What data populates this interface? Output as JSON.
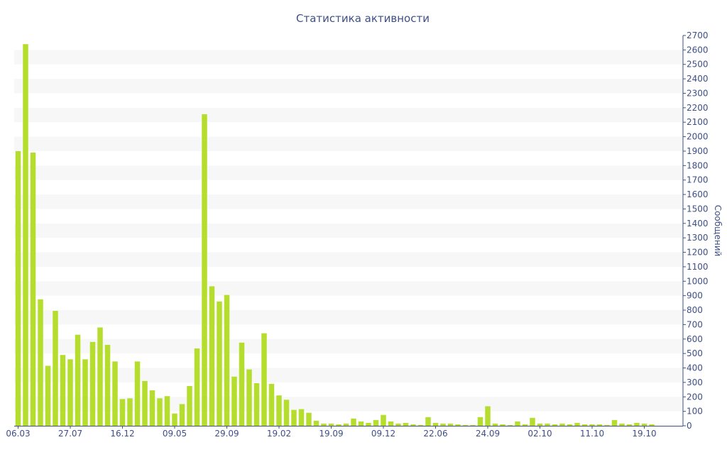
{
  "chart_data": {
    "type": "bar",
    "title": "Статистика активности",
    "xlabel": "",
    "ylabel": "Сообщений",
    "ylim": [
      0,
      2700
    ],
    "y_ticks": [
      0,
      100,
      200,
      300,
      400,
      500,
      600,
      700,
      800,
      900,
      1000,
      1100,
      1200,
      1300,
      1400,
      1500,
      1600,
      1700,
      1800,
      1900,
      2000,
      2100,
      2200,
      2300,
      2400,
      2500,
      2600,
      2700
    ],
    "y_axis_position": "right",
    "grid": "horizontal-bands",
    "x_tick_labels": [
      {
        "index": 0,
        "label": "06.03"
      },
      {
        "index": 7,
        "label": "27.07"
      },
      {
        "index": 14,
        "label": "16.12"
      },
      {
        "index": 21,
        "label": "09.05"
      },
      {
        "index": 28,
        "label": "29.09"
      },
      {
        "index": 35,
        "label": "19.02"
      },
      {
        "index": 42,
        "label": "19.09"
      },
      {
        "index": 49,
        "label": "09.12"
      },
      {
        "index": 56,
        "label": "22.06"
      },
      {
        "index": 63,
        "label": "24.09"
      },
      {
        "index": 70,
        "label": "02.10"
      },
      {
        "index": 77,
        "label": "11.10"
      },
      {
        "index": 84,
        "label": "19.10"
      }
    ],
    "values": [
      1900,
      2640,
      1890,
      875,
      415,
      795,
      490,
      460,
      630,
      460,
      580,
      680,
      560,
      445,
      185,
      190,
      445,
      310,
      245,
      190,
      205,
      85,
      150,
      275,
      535,
      2155,
      965,
      860,
      905,
      340,
      575,
      390,
      295,
      640,
      290,
      210,
      180,
      110,
      115,
      90,
      35,
      15,
      15,
      10,
      15,
      50,
      30,
      20,
      40,
      75,
      30,
      15,
      20,
      10,
      5,
      60,
      20,
      15,
      15,
      10,
      5,
      5,
      60,
      135,
      15,
      10,
      5,
      30,
      10,
      55,
      15,
      15,
      10,
      15,
      10,
      20,
      10,
      10,
      10,
      5,
      40,
      15,
      10,
      20,
      15,
      10
    ]
  },
  "colors": {
    "bar": "#b5dd2e",
    "band": "#f7f7f7",
    "text": "#3e4f86",
    "axis": "#3e4f86"
  }
}
